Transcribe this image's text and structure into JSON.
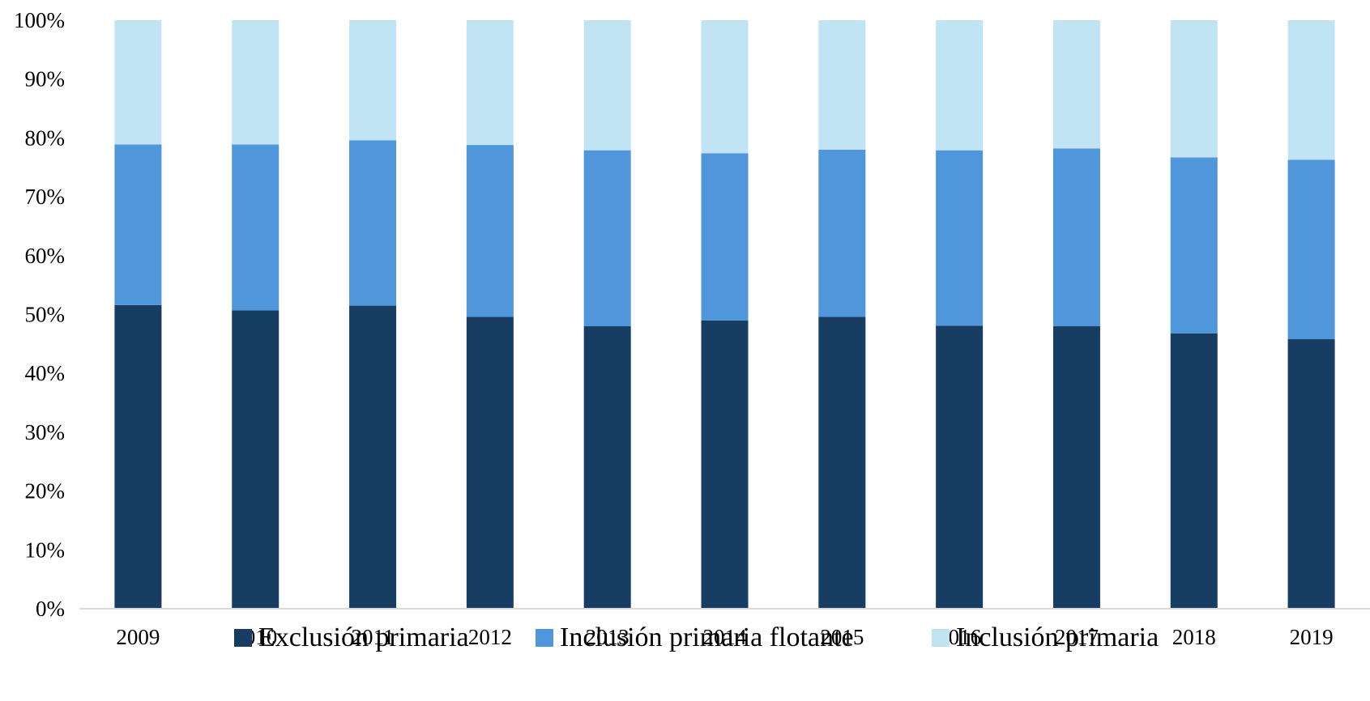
{
  "chart_data": {
    "type": "bar",
    "stacked": true,
    "normalized": true,
    "title": "",
    "xlabel": "",
    "ylabel": "",
    "categories": [
      "2009",
      "2010",
      "2011",
      "2012",
      "2013",
      "2014",
      "2015",
      "2016",
      "2017",
      "2018",
      "2019"
    ],
    "ylim": [
      0,
      100
    ],
    "yticks": [
      "0%",
      "10%",
      "20%",
      "30%",
      "40%",
      "50%",
      "60%",
      "70%",
      "80%",
      "90%",
      "100%"
    ],
    "grid": false,
    "legend_position": "bottom",
    "series": [
      {
        "name": "Exclusión primaria",
        "color": "#183D63",
        "values": [
          51.6,
          50.7,
          51.5,
          49.6,
          48.0,
          49.0,
          49.6,
          48.1,
          48.0,
          46.8,
          45.8
        ]
      },
      {
        "name": "Inclusión primaria flotante",
        "color": "#5096DA",
        "values": [
          27.3,
          28.2,
          28.1,
          29.2,
          29.9,
          28.4,
          28.4,
          29.8,
          30.2,
          29.9,
          30.5
        ]
      },
      {
        "name": "Inclusión primaria",
        "color": "#C1E4F5",
        "values": [
          21.1,
          21.1,
          20.4,
          21.2,
          22.1,
          22.6,
          22.0,
          22.1,
          21.8,
          23.3,
          23.7
        ]
      }
    ],
    "axis_color": "#D9D9D9"
  }
}
